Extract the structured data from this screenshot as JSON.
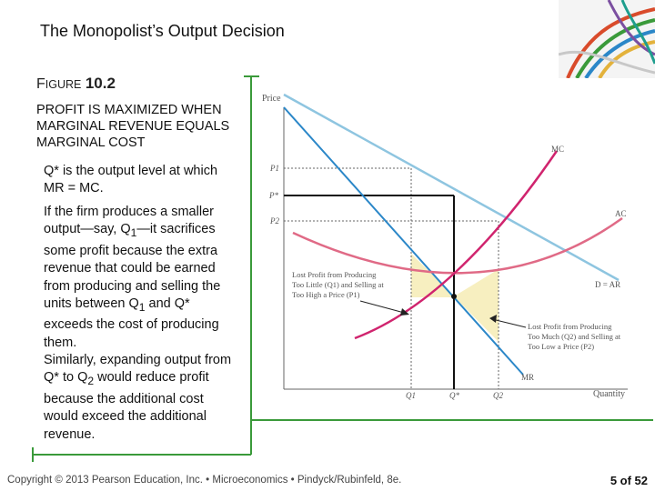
{
  "slide": {
    "title": "The Monopolist’s Output Decision",
    "figure_prefix": "F",
    "figure_word": "IGURE",
    "figure_number": "10.2",
    "heading": "PROFIT IS MAXIMIZED WHEN MARGINAL REVENUE EQUALS MARGINAL COST",
    "p1": "Q* is the output level at which MR = MC.",
    "p2_a": "If the firm produces a smaller output—say, Q",
    "p2_sub": "1",
    "p2_b": "—it sacrifices some profit because the extra revenue that could be earned from producing and selling the units between Q",
    "p2_sub2": "1",
    "p2_c": " and Q* exceeds the cost of producing them.",
    "p3_a": "Similarly, expanding output from Q* to Q",
    "p3_sub": "2",
    "p3_b": " would reduce profit because the additional cost would exceed the additional revenue.",
    "footer": "Copyright © 2013 Pearson Education, Inc. • Microeconomics • Pindyck/Rubinfeld, 8e.",
    "page_number": "5 of 52"
  },
  "chart_data": {
    "type": "line",
    "ylabel": "Price",
    "xlabel": "Quantity",
    "y_ticks": [
      "P1",
      "P*",
      "P2"
    ],
    "x_ticks": [
      "Q1",
      "Q*",
      "Q2"
    ],
    "series_labels": {
      "mc": "MC",
      "ac": "AC",
      "demand": "D = AR",
      "mr": "MR"
    },
    "annotation_left": [
      "Lost Profit from Producing",
      "Too Little (Q1) and Selling at",
      "Too High a Price (P1)"
    ],
    "annotation_right": [
      "Lost Profit from Producing",
      "Too Much (Q2) and Selling at",
      "Too Low a Price (P2)"
    ],
    "colors": {
      "demand": "#8ec5e0",
      "mr": "#2b87c8",
      "mc": "#d0246e",
      "ac": "#e06a86",
      "lost_profit": "#f7efc0",
      "frame": "#3a9a3a"
    }
  }
}
